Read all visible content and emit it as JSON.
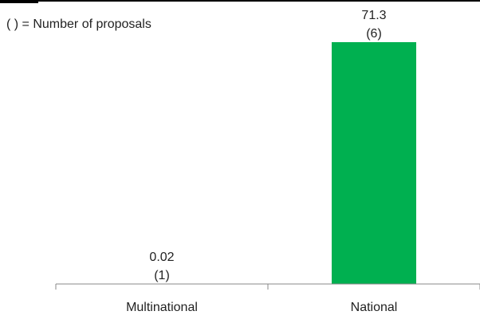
{
  "chart_data": {
    "type": "bar",
    "categories": [
      "Multinational",
      "National"
    ],
    "values": [
      0.02,
      71.3
    ],
    "value_labels": [
      "0.02",
      "71.3"
    ],
    "proposal_counts": [
      "(1)",
      "(6)"
    ],
    "note": "( ) = Number of proposals",
    "title": "",
    "xlabel": "",
    "ylabel": "",
    "ylim": [
      0,
      71.3
    ],
    "grid": false,
    "bar_color": "#00B050",
    "top_rule_color": "#000000"
  }
}
